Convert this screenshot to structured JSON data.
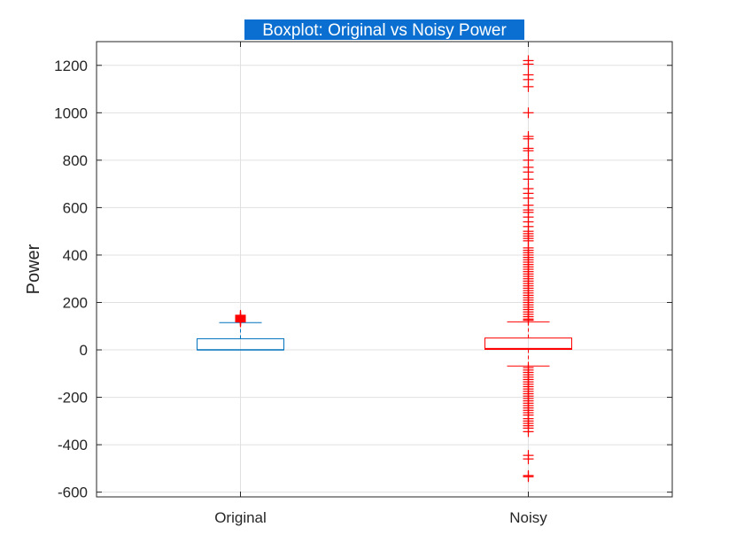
{
  "chart_data": {
    "type": "boxplot",
    "title": "Boxplot: Original vs Noisy Power",
    "ylabel": "Power",
    "xlabel": "",
    "categories": [
      "Original",
      "Noisy"
    ],
    "ylim": [
      -620,
      1300
    ],
    "yticks": [
      -600,
      -400,
      -200,
      0,
      200,
      400,
      600,
      800,
      1000,
      1200
    ],
    "ytick_labels": [
      "-600",
      "-400",
      "-200",
      "0",
      "200",
      "400",
      "600",
      "800",
      "1000",
      "1200"
    ],
    "grid": true,
    "title_highlight": "#0a6fd0",
    "boxes": [
      {
        "category": "Original",
        "color": "#0072bd",
        "q1": 0,
        "median": 0,
        "q3": 47,
        "whisker_low": 0,
        "whisker_high": 115,
        "outliers": [
          118,
          121,
          124,
          127,
          130,
          133,
          136,
          139,
          142,
          146
        ]
      },
      {
        "category": "Noisy",
        "color": "#ff0000",
        "q1": 2,
        "median": 5,
        "q3": 50,
        "whisker_low": -68,
        "whisker_high": 118,
        "outliers": [
          1220,
          1205,
          1160,
          1140,
          1110,
          1000,
          900,
          890,
          850,
          840,
          800,
          770,
          750,
          720,
          680,
          660,
          640,
          610,
          590,
          580,
          560,
          540,
          520,
          500,
          490,
          480,
          470,
          460,
          430,
          420,
          410,
          400,
          390,
          380,
          370,
          360,
          350,
          340,
          330,
          320,
          310,
          300,
          290,
          280,
          270,
          260,
          250,
          240,
          230,
          220,
          210,
          200,
          190,
          180,
          170,
          160,
          150,
          140,
          130,
          125,
          -75,
          -85,
          -95,
          -105,
          -115,
          -125,
          -135,
          -145,
          -155,
          -165,
          -175,
          -185,
          -195,
          -205,
          -215,
          -225,
          -235,
          -245,
          -255,
          -265,
          -275,
          -290,
          -300,
          -310,
          -320,
          -330,
          -345,
          -445,
          -460,
          -530,
          -535
        ]
      }
    ]
  }
}
